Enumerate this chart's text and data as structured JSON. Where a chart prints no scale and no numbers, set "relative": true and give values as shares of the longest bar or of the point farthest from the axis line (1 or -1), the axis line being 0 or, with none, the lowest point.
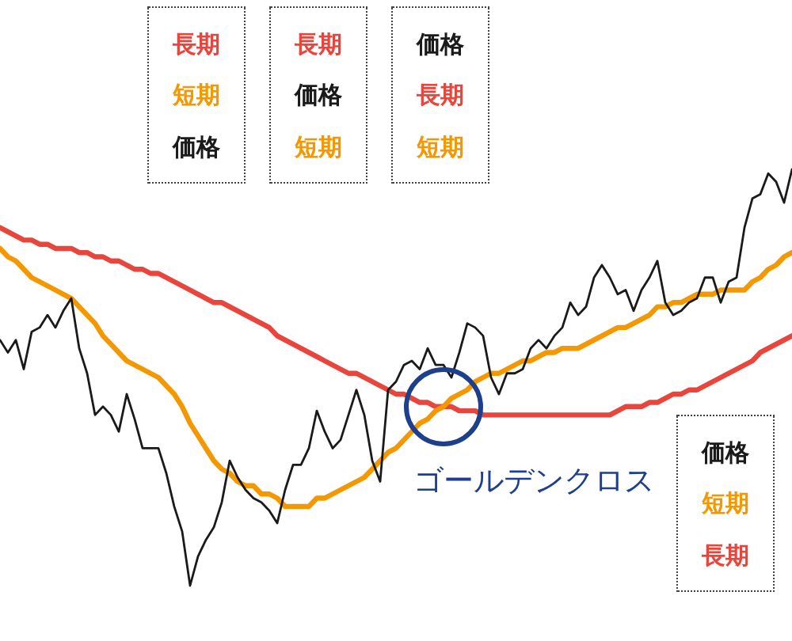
{
  "chart_data": {
    "type": "line",
    "relative": true,
    "marker": "none",
    "categories": [
      null,
      null,
      null,
      null,
      null,
      null,
      null,
      null,
      null,
      null,
      null,
      null,
      null,
      null,
      null,
      null,
      null,
      null,
      null,
      null,
      null,
      null,
      null,
      null,
      null,
      null,
      null,
      null,
      null,
      null,
      null,
      null,
      null,
      null,
      null,
      null,
      null,
      null,
      null,
      null,
      null,
      null,
      null,
      null,
      null,
      null,
      null,
      null,
      null,
      null,
      null,
      null,
      null,
      null,
      null,
      null,
      null,
      null,
      null,
      null,
      null,
      null,
      null,
      null,
      null,
      null,
      null,
      null,
      null,
      null,
      null,
      null,
      null,
      null,
      null,
      null,
      null,
      null,
      null,
      null,
      null,
      null,
      null,
      null,
      null,
      null,
      null,
      null,
      null,
      null,
      null,
      null,
      null,
      null,
      null,
      null,
      null,
      null,
      null,
      null,
      null
    ],
    "series": [
      {
        "name": "価格",
        "color": "#1a1a1a",
        "values": [
          0.59,
          0.56,
          0.59,
          0.52,
          0.61,
          0.62,
          0.65,
          0.62,
          0.66,
          0.69,
          0.57,
          0.51,
          0.41,
          0.43,
          0.41,
          0.37,
          0.46,
          0.4,
          0.33,
          0.33,
          0.33,
          0.27,
          0.19,
          0.13,
          0,
          0.07,
          0.11,
          0.14,
          0.2,
          0.3,
          0.26,
          0.23,
          0.21,
          0.2,
          0.18,
          0.15,
          0.23,
          0.29,
          0.29,
          0.33,
          0.42,
          0.37,
          0.33,
          0.35,
          0.41,
          0.47,
          0.41,
          0.3,
          0.25,
          0.47,
          0.49,
          0.53,
          0.54,
          0.52,
          0.57,
          0.53,
          0.53,
          0.5,
          0.56,
          0.63,
          0.62,
          0.6,
          0.5,
          0.46,
          0.51,
          0.51,
          0.52,
          0.57,
          0.59,
          0.57,
          0.6,
          0.62,
          0.68,
          0.65,
          0.67,
          0.74,
          0.77,
          0.74,
          0.7,
          0.71,
          0.66,
          0.71,
          0.74,
          0.78,
          0.68,
          0.65,
          0.66,
          0.68,
          0.69,
          0.74,
          0.74,
          0.68,
          0.73,
          0.74,
          0.86,
          0.93,
          0.94,
          0.99,
          0.97,
          0.92,
          1
        ]
      },
      {
        "name": "短期",
        "color": "#f39800",
        "values": [
          0.81,
          0.79,
          0.78,
          0.76,
          0.74,
          0.73,
          0.72,
          0.71,
          0.7,
          0.69,
          0.67,
          0.65,
          0.63,
          0.6,
          0.58,
          0.56,
          0.54,
          0.53,
          0.52,
          0.51,
          0.5,
          0.48,
          0.46,
          0.43,
          0.39,
          0.36,
          0.33,
          0.3,
          0.28,
          0.27,
          0.25,
          0.24,
          0.24,
          0.22,
          0.22,
          0.21,
          0.19,
          0.19,
          0.19,
          0.19,
          0.21,
          0.21,
          0.22,
          0.23,
          0.24,
          0.25,
          0.26,
          0.28,
          0.3,
          0.32,
          0.33,
          0.35,
          0.37,
          0.39,
          0.4,
          0.42,
          0.43,
          0.45,
          0.46,
          0.47,
          0.49,
          0.5,
          0.51,
          0.51,
          0.52,
          0.53,
          0.54,
          0.54,
          0.55,
          0.56,
          0.56,
          0.57,
          0.57,
          0.57,
          0.58,
          0.59,
          0.6,
          0.61,
          0.62,
          0.62,
          0.63,
          0.64,
          0.65,
          0.67,
          0.67,
          0.68,
          0.68,
          0.69,
          0.7,
          0.7,
          0.7,
          0.71,
          0.71,
          0.71,
          0.71,
          0.73,
          0.74,
          0.76,
          0.77,
          0.79,
          0.8
        ]
      },
      {
        "name": "長期",
        "color": "#e8453c",
        "values": [
          0.86,
          0.85,
          0.84,
          0.83,
          0.83,
          0.82,
          0.82,
          0.81,
          0.81,
          0.81,
          0.8,
          0.8,
          0.79,
          0.79,
          0.78,
          0.78,
          0.77,
          0.76,
          0.76,
          0.75,
          0.75,
          0.74,
          0.73,
          0.72,
          0.71,
          0.7,
          0.69,
          0.68,
          0.68,
          0.67,
          0.66,
          0.65,
          0.64,
          0.63,
          0.62,
          0.6,
          0.59,
          0.58,
          0.57,
          0.56,
          0.55,
          0.54,
          0.53,
          0.52,
          0.51,
          0.51,
          0.5,
          0.49,
          0.48,
          0.47,
          0.46,
          0.46,
          0.45,
          0.44,
          0.44,
          0.43,
          0.43,
          0.43,
          0.42,
          0.42,
          0.42,
          0.41,
          0.41,
          0.41,
          0.41,
          0.41,
          0.41,
          0.41,
          0.41,
          0.41,
          0.41,
          0.41,
          0.41,
          0.41,
          0.41,
          0.41,
          0.41,
          0.41,
          0.42,
          0.43,
          0.43,
          0.43,
          0.44,
          0.44,
          0.45,
          0.46,
          0.46,
          0.47,
          0.47,
          0.48,
          0.49,
          0.5,
          0.51,
          0.52,
          0.53,
          0.54,
          0.56,
          0.57,
          0.58,
          0.59,
          0.6
        ]
      }
    ],
    "annotations": [
      {
        "text": "ゴールデンクロス",
        "y": 0.43
      }
    ]
  }
}
